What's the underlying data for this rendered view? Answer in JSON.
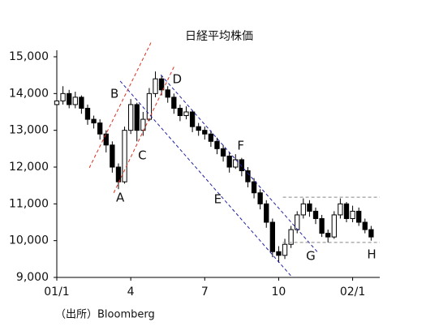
{
  "chart_data": {
    "type": "candlestick",
    "title": "日経平均株価",
    "source": "（出所）Bloomberg",
    "x": [
      0,
      0.25,
      0.5,
      0.75,
      1,
      1.25,
      1.5,
      1.75,
      2,
      2.25,
      2.5,
      2.75,
      3,
      3.25,
      3.5,
      3.75,
      4,
      4.25,
      4.5,
      4.75,
      5,
      5.25,
      5.5,
      5.75,
      6,
      6.25,
      6.5,
      6.75,
      7,
      7.25,
      7.5,
      7.75,
      8,
      8.25,
      8.5,
      8.75,
      9,
      9.25,
      9.5,
      9.75,
      10,
      10.25,
      10.5,
      10.75,
      11,
      11.25,
      11.5,
      11.75,
      12,
      12.25,
      12.5,
      12.75
    ],
    "open": [
      13700,
      13800,
      14000,
      13700,
      13900,
      13600,
      13300,
      13200,
      12900,
      12600,
      12000,
      11600,
      13000,
      13700,
      13000,
      13300,
      14000,
      14400,
      14100,
      13900,
      13600,
      13400,
      13500,
      13100,
      13000,
      12900,
      12700,
      12500,
      12300,
      12000,
      12200,
      11900,
      11600,
      11300,
      11000,
      10500,
      9700,
      9600,
      9900,
      10300,
      10700,
      11000,
      10800,
      10600,
      10200,
      10100,
      10700,
      11000,
      10600,
      10800,
      10500,
      10300
    ],
    "high": [
      14000,
      14200,
      14100,
      14050,
      13950,
      13700,
      13400,
      13300,
      13000,
      12700,
      12100,
      13100,
      13850,
      13750,
      13500,
      14150,
      14600,
      14500,
      14200,
      14000,
      13700,
      13650,
      13550,
      13200,
      13100,
      13000,
      12800,
      12600,
      12400,
      12350,
      12250,
      12000,
      11700,
      11400,
      11100,
      10600,
      9850,
      10050,
      10400,
      10800,
      11150,
      11100,
      10900,
      10700,
      10300,
      10800,
      11150,
      11050,
      10950,
      10900,
      10600,
      10400
    ],
    "low": [
      13500,
      13700,
      13600,
      13600,
      13450,
      13150,
      13050,
      12750,
      12400,
      11850,
      11400,
      11550,
      12900,
      12700,
      12850,
      13250,
      13900,
      13950,
      13750,
      13450,
      13250,
      13300,
      12950,
      12850,
      12750,
      12550,
      12350,
      12150,
      11850,
      11950,
      11750,
      11450,
      11150,
      10850,
      10350,
      9550,
      9400,
      9500,
      9800,
      10200,
      10600,
      10650,
      10450,
      10100,
      9950,
      10050,
      10600,
      10500,
      10500,
      10400,
      10200,
      10000
    ],
    "close": [
      13800,
      14000,
      13700,
      13900,
      13600,
      13300,
      13200,
      12900,
      12600,
      12000,
      11600,
      13000,
      13700,
      13000,
      13300,
      14000,
      14400,
      14100,
      13900,
      13600,
      13400,
      13500,
      13100,
      13000,
      12900,
      12700,
      12500,
      12300,
      12000,
      12200,
      11900,
      11600,
      11300,
      11000,
      10500,
      9700,
      9600,
      9900,
      10300,
      10700,
      11000,
      10800,
      10600,
      10200,
      10100,
      10700,
      11000,
      10600,
      10800,
      10500,
      10300,
      10100
    ],
    "xlim": [
      0,
      13.1
    ],
    "xticks": [
      {
        "value": 0,
        "label": "01/1"
      },
      {
        "value": 3,
        "label": "4"
      },
      {
        "value": 6,
        "label": "7"
      },
      {
        "value": 9,
        "label": "10"
      },
      {
        "value": 12,
        "label": "02/1"
      }
    ],
    "ylim": [
      9000,
      15000
    ],
    "yticks": [
      {
        "value": 9000,
        "label": "9,000"
      },
      {
        "value": 10000,
        "label": "10,000"
      },
      {
        "value": 11000,
        "label": "11,000"
      },
      {
        "value": 12000,
        "label": "12,000"
      },
      {
        "value": 13000,
        "label": "13,000"
      },
      {
        "value": 14000,
        "label": "14,000"
      },
      {
        "value": 15000,
        "label": "15,000"
      }
    ],
    "lines": [
      {
        "color": "#e03020",
        "x": [
          1.32,
          3.86
        ],
        "y": [
          11980,
          15440
        ]
      },
      {
        "color": "#e03020",
        "x": [
          2.31,
          4.79
        ],
        "y": [
          11300,
          14780
        ]
      },
      {
        "color": "#2020a0",
        "x": [
          2.57,
          9.5
        ],
        "y": [
          14340,
          9040
        ]
      },
      {
        "color": "#2020a0",
        "x": [
          4.22,
          10.56
        ],
        "y": [
          14510,
          9700
        ]
      },
      {
        "color": "#888888",
        "x": [
          9.17,
          13.1
        ],
        "y": [
          11180,
          11180
        ]
      },
      {
        "color": "#888888",
        "x": [
          9.17,
          13.1
        ],
        "y": [
          9950,
          9950
        ]
      }
    ],
    "annotations": [
      {
        "text": "A",
        "x": 2.57,
        "y": 11160
      },
      {
        "text": "B",
        "x": 2.34,
        "y": 13980
      },
      {
        "text": "C",
        "x": 3.47,
        "y": 12310
      },
      {
        "text": "D",
        "x": 4.88,
        "y": 14380
      },
      {
        "text": "E",
        "x": 6.53,
        "y": 11120
      },
      {
        "text": "F",
        "x": 7.46,
        "y": 12570
      },
      {
        "text": "G",
        "x": 10.3,
        "y": 9570
      },
      {
        "text": "H",
        "x": 12.77,
        "y": 9620
      }
    ]
  }
}
